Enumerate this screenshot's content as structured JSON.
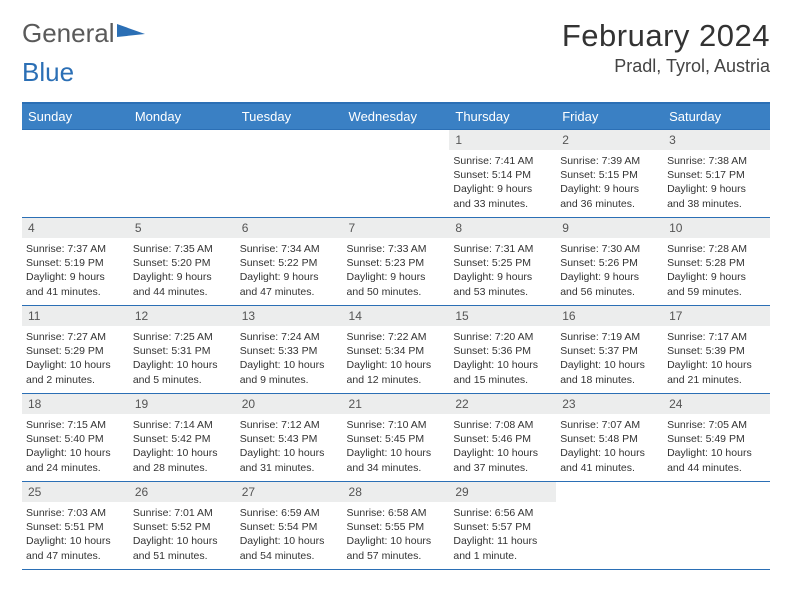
{
  "brand": {
    "word1": "General",
    "word2": "Blue"
  },
  "title": "February 2024",
  "location": "Pradl, Tyrol, Austria",
  "colors": {
    "header_bg": "#3a80c4",
    "border": "#2b6fb5",
    "daynum_bg": "#eceded",
    "text": "#333333"
  },
  "weekdays": [
    "Sunday",
    "Monday",
    "Tuesday",
    "Wednesday",
    "Thursday",
    "Friday",
    "Saturday"
  ],
  "weeks": [
    [
      {
        "n": "",
        "sr": "",
        "ss": "",
        "dl": ""
      },
      {
        "n": "",
        "sr": "",
        "ss": "",
        "dl": ""
      },
      {
        "n": "",
        "sr": "",
        "ss": "",
        "dl": ""
      },
      {
        "n": "",
        "sr": "",
        "ss": "",
        "dl": ""
      },
      {
        "n": "1",
        "sr": "Sunrise: 7:41 AM",
        "ss": "Sunset: 5:14 PM",
        "dl": "Daylight: 9 hours and 33 minutes."
      },
      {
        "n": "2",
        "sr": "Sunrise: 7:39 AM",
        "ss": "Sunset: 5:15 PM",
        "dl": "Daylight: 9 hours and 36 minutes."
      },
      {
        "n": "3",
        "sr": "Sunrise: 7:38 AM",
        "ss": "Sunset: 5:17 PM",
        "dl": "Daylight: 9 hours and 38 minutes."
      }
    ],
    [
      {
        "n": "4",
        "sr": "Sunrise: 7:37 AM",
        "ss": "Sunset: 5:19 PM",
        "dl": "Daylight: 9 hours and 41 minutes."
      },
      {
        "n": "5",
        "sr": "Sunrise: 7:35 AM",
        "ss": "Sunset: 5:20 PM",
        "dl": "Daylight: 9 hours and 44 minutes."
      },
      {
        "n": "6",
        "sr": "Sunrise: 7:34 AM",
        "ss": "Sunset: 5:22 PM",
        "dl": "Daylight: 9 hours and 47 minutes."
      },
      {
        "n": "7",
        "sr": "Sunrise: 7:33 AM",
        "ss": "Sunset: 5:23 PM",
        "dl": "Daylight: 9 hours and 50 minutes."
      },
      {
        "n": "8",
        "sr": "Sunrise: 7:31 AM",
        "ss": "Sunset: 5:25 PM",
        "dl": "Daylight: 9 hours and 53 minutes."
      },
      {
        "n": "9",
        "sr": "Sunrise: 7:30 AM",
        "ss": "Sunset: 5:26 PM",
        "dl": "Daylight: 9 hours and 56 minutes."
      },
      {
        "n": "10",
        "sr": "Sunrise: 7:28 AM",
        "ss": "Sunset: 5:28 PM",
        "dl": "Daylight: 9 hours and 59 minutes."
      }
    ],
    [
      {
        "n": "11",
        "sr": "Sunrise: 7:27 AM",
        "ss": "Sunset: 5:29 PM",
        "dl": "Daylight: 10 hours and 2 minutes."
      },
      {
        "n": "12",
        "sr": "Sunrise: 7:25 AM",
        "ss": "Sunset: 5:31 PM",
        "dl": "Daylight: 10 hours and 5 minutes."
      },
      {
        "n": "13",
        "sr": "Sunrise: 7:24 AM",
        "ss": "Sunset: 5:33 PM",
        "dl": "Daylight: 10 hours and 9 minutes."
      },
      {
        "n": "14",
        "sr": "Sunrise: 7:22 AM",
        "ss": "Sunset: 5:34 PM",
        "dl": "Daylight: 10 hours and 12 minutes."
      },
      {
        "n": "15",
        "sr": "Sunrise: 7:20 AM",
        "ss": "Sunset: 5:36 PM",
        "dl": "Daylight: 10 hours and 15 minutes."
      },
      {
        "n": "16",
        "sr": "Sunrise: 7:19 AM",
        "ss": "Sunset: 5:37 PM",
        "dl": "Daylight: 10 hours and 18 minutes."
      },
      {
        "n": "17",
        "sr": "Sunrise: 7:17 AM",
        "ss": "Sunset: 5:39 PM",
        "dl": "Daylight: 10 hours and 21 minutes."
      }
    ],
    [
      {
        "n": "18",
        "sr": "Sunrise: 7:15 AM",
        "ss": "Sunset: 5:40 PM",
        "dl": "Daylight: 10 hours and 24 minutes."
      },
      {
        "n": "19",
        "sr": "Sunrise: 7:14 AM",
        "ss": "Sunset: 5:42 PM",
        "dl": "Daylight: 10 hours and 28 minutes."
      },
      {
        "n": "20",
        "sr": "Sunrise: 7:12 AM",
        "ss": "Sunset: 5:43 PM",
        "dl": "Daylight: 10 hours and 31 minutes."
      },
      {
        "n": "21",
        "sr": "Sunrise: 7:10 AM",
        "ss": "Sunset: 5:45 PM",
        "dl": "Daylight: 10 hours and 34 minutes."
      },
      {
        "n": "22",
        "sr": "Sunrise: 7:08 AM",
        "ss": "Sunset: 5:46 PM",
        "dl": "Daylight: 10 hours and 37 minutes."
      },
      {
        "n": "23",
        "sr": "Sunrise: 7:07 AM",
        "ss": "Sunset: 5:48 PM",
        "dl": "Daylight: 10 hours and 41 minutes."
      },
      {
        "n": "24",
        "sr": "Sunrise: 7:05 AM",
        "ss": "Sunset: 5:49 PM",
        "dl": "Daylight: 10 hours and 44 minutes."
      }
    ],
    [
      {
        "n": "25",
        "sr": "Sunrise: 7:03 AM",
        "ss": "Sunset: 5:51 PM",
        "dl": "Daylight: 10 hours and 47 minutes."
      },
      {
        "n": "26",
        "sr": "Sunrise: 7:01 AM",
        "ss": "Sunset: 5:52 PM",
        "dl": "Daylight: 10 hours and 51 minutes."
      },
      {
        "n": "27",
        "sr": "Sunrise: 6:59 AM",
        "ss": "Sunset: 5:54 PM",
        "dl": "Daylight: 10 hours and 54 minutes."
      },
      {
        "n": "28",
        "sr": "Sunrise: 6:58 AM",
        "ss": "Sunset: 5:55 PM",
        "dl": "Daylight: 10 hours and 57 minutes."
      },
      {
        "n": "29",
        "sr": "Sunrise: 6:56 AM",
        "ss": "Sunset: 5:57 PM",
        "dl": "Daylight: 11 hours and 1 minute."
      },
      {
        "n": "",
        "sr": "",
        "ss": "",
        "dl": ""
      },
      {
        "n": "",
        "sr": "",
        "ss": "",
        "dl": ""
      }
    ]
  ]
}
